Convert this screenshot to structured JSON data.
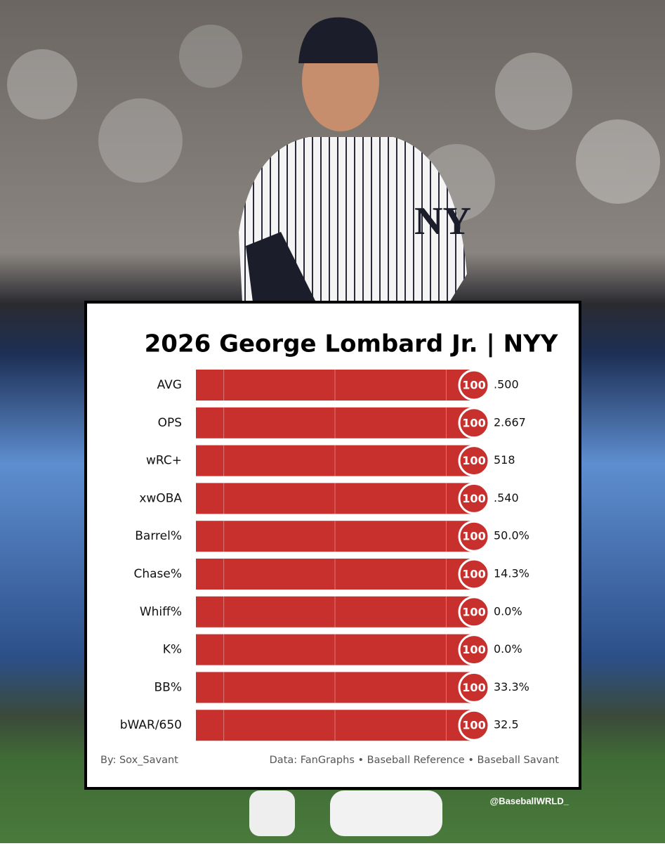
{
  "chart_data": {
    "type": "bar",
    "orientation": "horizontal",
    "title": "2026 George Lombard Jr. | NYY",
    "categories": [
      "AVG",
      "OPS",
      "wRC+",
      "xwOBA",
      "Barrel%",
      "Chase%",
      "Whiff%",
      "K%",
      "BB%",
      "bWAR/650"
    ],
    "values": [
      100,
      100,
      100,
      100,
      100,
      100,
      100,
      100,
      100,
      100
    ],
    "stats": [
      ".500",
      "2.667",
      "518",
      ".540",
      "50.0%",
      "14.3%",
      "0.0%",
      "0.0%",
      "33.3%",
      "32.5"
    ],
    "color": "#c8302d",
    "xlim": [
      0,
      100
    ],
    "xticks": [
      10,
      50,
      90
    ],
    "grid": true,
    "author": "By: Sox_Savant",
    "source": "Data: FanGraphs • Baseball Reference • Baseball Savant",
    "watermark": "@BaseballWRLD_"
  }
}
